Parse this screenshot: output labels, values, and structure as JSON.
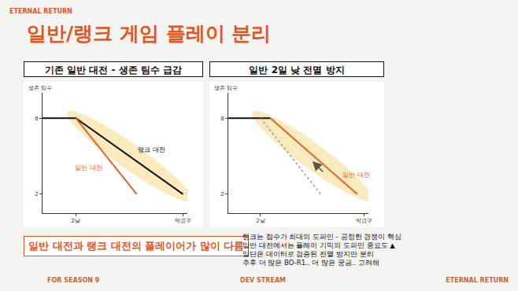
{
  "slide": {
    "brand": "ETERNAL RETURN",
    "title": "일반/랭크 게임 플레이 분리",
    "callout": "일반 대전과 랭크 대전의 플레이어가 많이 다름",
    "notes": [
      "랭크는 점수가 최대의 도파민 - 공정한 경쟁이 핵심",
      "일반 대전에서는 플레이 기믹의 도파민 중요도 ▲",
      "일단은 데이터로 검증된 전멸 방지만 분리",
      "추후 더 많은 BO-R1.. 더 많은 궁금.. 고려해"
    ],
    "footer": [
      "FOR SEASON 9",
      "DEV STREAM"
    ],
    "logo": "ETERNAL RETURN"
  },
  "chart_data": [
    {
      "type": "line",
      "title": "기존 일반 대전 - 생존 팀수 급감",
      "y_label": "생존 팀수",
      "xlim": [
        0,
        10
      ],
      "xticks": [
        {
          "value": 2.3,
          "label": "2날"
        },
        {
          "value": 9.7,
          "label": "막금구"
        }
      ],
      "ylim": [
        0.5,
        10
      ],
      "yticks": [
        2,
        8
      ],
      "grid": false,
      "series": [
        {
          "name": "랭크 대전",
          "color": "#111111",
          "line_style": "solid",
          "x": [
            0,
            2.3,
            9.7
          ],
          "values": [
            8,
            8,
            2
          ]
        },
        {
          "name": "일반 대전",
          "color": "#e8612c",
          "line_style": "solid",
          "x": [
            2.3,
            6.5
          ],
          "values": [
            8,
            2
          ]
        }
      ]
    },
    {
      "type": "line",
      "title": "일반 2일 낮 전멸 방지",
      "y_label": "생존 팀수",
      "xlim": [
        0,
        10
      ],
      "xticks": [
        {
          "value": 2.3,
          "label": "2날"
        },
        {
          "value": 9.7,
          "label": "막금구"
        }
      ],
      "ylim": [
        0.5,
        10
      ],
      "yticks": [
        2,
        8
      ],
      "grid": false,
      "series": [
        {
          "color": "#111111",
          "line_style": "solid",
          "x": [
            0,
            3.0
          ],
          "values": [
            8,
            8
          ]
        },
        {
          "color": "#999999",
          "line_style": "dotted",
          "x": [
            2.3,
            6.6
          ],
          "values": [
            8,
            2
          ]
        },
        {
          "name": "일반 대전",
          "color": "#e8612c",
          "line_style": "solid",
          "x": [
            3.0,
            9.2
          ],
          "values": [
            8,
            2
          ]
        }
      ]
    }
  ]
}
